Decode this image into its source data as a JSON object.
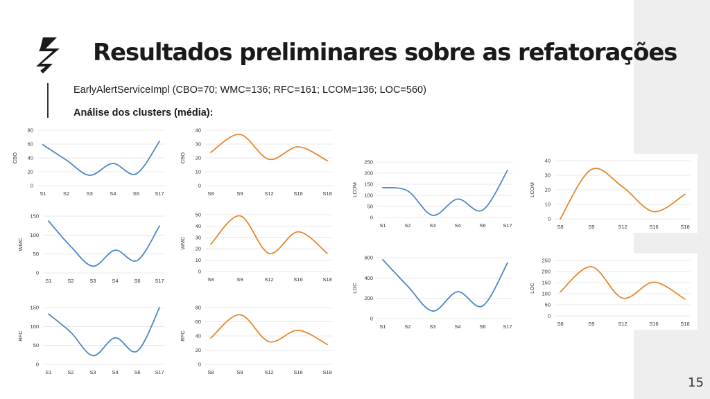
{
  "slide": {
    "title": "Resultados preliminares sobre as refatorações",
    "subtitle": "EarlyAlertServiceImpl (CBO=70; WMC=136; RFC=161; LCOM=136; LOC=560)",
    "section": "Análise dos clusters (média):",
    "page_number": "15",
    "logo": "lightning-logo-icon"
  },
  "colors": {
    "blue": "#4a86c8",
    "orange": "#e6862b",
    "grid": "#e2e2e2",
    "background_band": "#eeeeee"
  },
  "chart_data": [
    {
      "type": "line",
      "ylabel": "CBO",
      "color": "blue",
      "categories": [
        "S1",
        "S2",
        "S3",
        "S4",
        "S6",
        "S17"
      ],
      "values": [
        59,
        37,
        15,
        32,
        17,
        64
      ],
      "ylim": [
        0,
        80
      ],
      "yticks": [
        0,
        20,
        40,
        60,
        80
      ],
      "grid": true
    },
    {
      "type": "line",
      "ylabel": "CBO",
      "color": "orange",
      "categories": [
        "S8",
        "S9",
        "S12",
        "S16",
        "S18"
      ],
      "values": [
        24,
        37,
        19,
        28,
        18
      ],
      "ylim": [
        0,
        40
      ],
      "yticks": [
        0,
        10,
        20,
        30,
        40
      ],
      "grid": true
    },
    {
      "type": "line",
      "ylabel": "WMC",
      "color": "blue",
      "categories": [
        "S1",
        "S2",
        "S3",
        "S4",
        "S6",
        "S17"
      ],
      "values": [
        137,
        70,
        18,
        60,
        33,
        124
      ],
      "ylim": [
        0,
        150
      ],
      "yticks": [
        0,
        50,
        100,
        150
      ],
      "grid": true
    },
    {
      "type": "line",
      "ylabel": "WMC",
      "color": "orange",
      "categories": [
        "S8",
        "S9",
        "S12",
        "S16",
        "S18"
      ],
      "values": [
        24,
        49,
        16,
        35,
        16
      ],
      "ylim": [
        0,
        50
      ],
      "yticks": [
        0,
        10,
        20,
        30,
        40,
        50
      ],
      "grid": true
    },
    {
      "type": "line",
      "ylabel": "RFC",
      "color": "blue",
      "categories": [
        "S1",
        "S2",
        "S3",
        "S4",
        "S6",
        "S17"
      ],
      "values": [
        133,
        85,
        23,
        70,
        35,
        150
      ],
      "ylim": [
        0,
        150
      ],
      "yticks": [
        0,
        50,
        100,
        150
      ],
      "grid": true
    },
    {
      "type": "line",
      "ylabel": "RFC",
      "color": "orange",
      "categories": [
        "S8",
        "S9",
        "S12",
        "S16",
        "S18"
      ],
      "values": [
        37,
        70,
        32,
        48,
        28
      ],
      "ylim": [
        0,
        80
      ],
      "yticks": [
        0,
        20,
        40,
        60,
        80
      ],
      "grid": true
    },
    {
      "type": "line",
      "ylabel": "LCOM",
      "color": "blue",
      "categories": [
        "S1",
        "S2",
        "S3",
        "S4",
        "S6",
        "S17"
      ],
      "values": [
        135,
        120,
        10,
        83,
        33,
        213
      ],
      "ylim": [
        0,
        250
      ],
      "yticks": [
        0,
        50,
        100,
        150,
        200,
        250
      ],
      "grid": true
    },
    {
      "type": "line",
      "ylabel": "LCOM",
      "color": "orange",
      "categories": [
        "S8",
        "S9",
        "S12",
        "S16",
        "S18"
      ],
      "values": [
        0,
        34,
        22,
        5,
        17
      ],
      "ylim": [
        0,
        40
      ],
      "yticks": [
        0,
        10,
        20,
        30,
        40
      ],
      "grid": true
    },
    {
      "type": "line",
      "ylabel": "LOC",
      "color": "blue",
      "categories": [
        "S1",
        "S2",
        "S3",
        "S4",
        "S6",
        "S17"
      ],
      "values": [
        580,
        320,
        75,
        265,
        125,
        550
      ],
      "ylim": [
        0,
        600
      ],
      "yticks": [
        0,
        200,
        400,
        600
      ],
      "grid": true
    },
    {
      "type": "line",
      "ylabel": "LOC",
      "color": "orange",
      "categories": [
        "S8",
        "S9",
        "S12",
        "S16",
        "S18"
      ],
      "values": [
        108,
        222,
        80,
        152,
        75
      ],
      "ylim": [
        0,
        250
      ],
      "yticks": [
        0,
        50,
        100,
        150,
        200,
        250
      ],
      "grid": true
    }
  ]
}
